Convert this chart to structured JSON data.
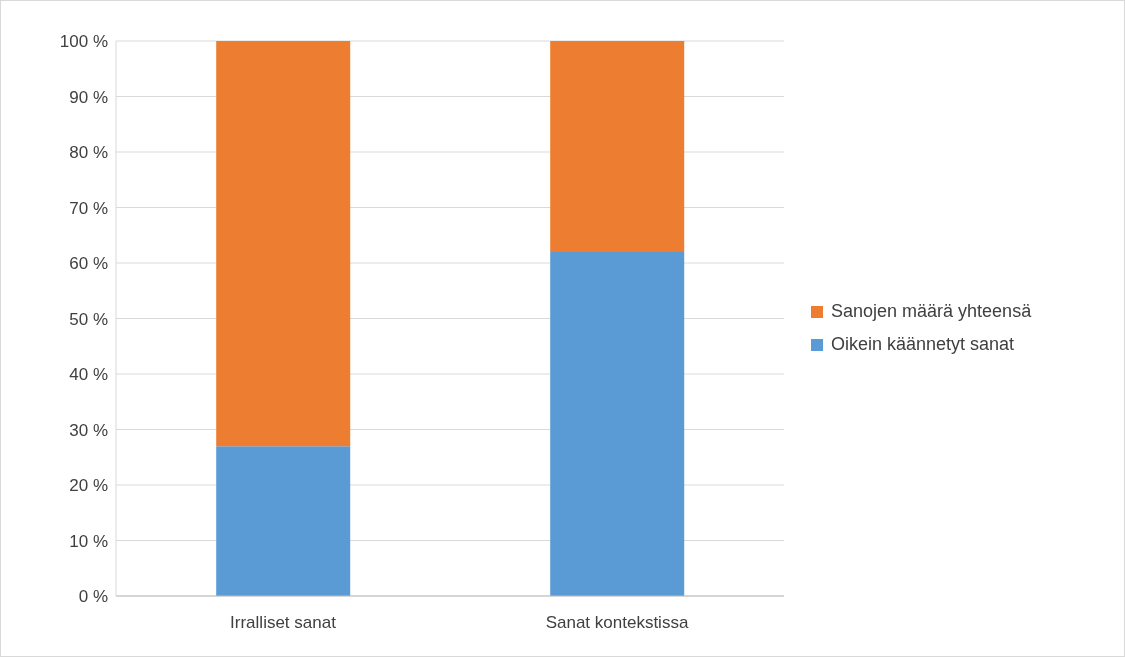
{
  "chart_data": {
    "type": "bar",
    "stacked": true,
    "categories": [
      "Irralliset sanat",
      "Sanat kontekstissa"
    ],
    "series": [
      {
        "name": "Oikein käännetyt sanat",
        "color": "#5b9bd5",
        "values": [
          27,
          62
        ]
      },
      {
        "name": "Sanojen määrä yhteensä",
        "color": "#ed7d31",
        "values": [
          73,
          38
        ]
      }
    ],
    "ylim": [
      0,
      100
    ],
    "yticks": [
      {
        "value": 0,
        "label": "0 %"
      },
      {
        "value": 10,
        "label": "10 %"
      },
      {
        "value": 20,
        "label": "20 %"
      },
      {
        "value": 30,
        "label": "30 %"
      },
      {
        "value": 40,
        "label": "40 %"
      },
      {
        "value": 50,
        "label": "50 %"
      },
      {
        "value": 60,
        "label": "60 %"
      },
      {
        "value": 70,
        "label": "70 %"
      },
      {
        "value": 80,
        "label": "80 %"
      },
      {
        "value": 90,
        "label": "90 %"
      },
      {
        "value": 100,
        "label": "100 %"
      }
    ],
    "grid": "y",
    "legend": "right"
  }
}
